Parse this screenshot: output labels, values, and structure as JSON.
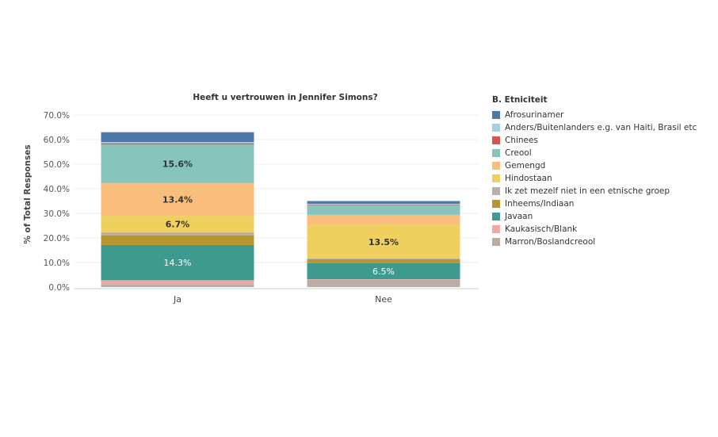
{
  "chart_data": {
    "type": "bar",
    "stacked": true,
    "title": "Heeft u vertrouwen in Jennifer Simons?",
    "ylabel": "% of Total Responses",
    "xlabel": "",
    "ylim": [
      0,
      70
    ],
    "y_ticks": [
      "0.0%",
      "10.0%",
      "20.0%",
      "30.0%",
      "40.0%",
      "50.0%",
      "60.0%",
      "70.0%"
    ],
    "grid": true,
    "categories": [
      "Ja",
      "Nee"
    ],
    "legend_title": "B. Etniciteit",
    "legend_position": "right",
    "series": [
      {
        "name": "Marron/Boslandcreool",
        "color": "#b8aea6",
        "values": [
          1.2,
          3.0
        ],
        "labels": [
          "",
          ""
        ]
      },
      {
        "name": "Kaukasisch/Blank",
        "color": "#f2a7a5",
        "values": [
          1.6,
          0.2
        ],
        "labels": [
          "",
          ""
        ]
      },
      {
        "name": "Javaan",
        "color": "#3e9a8e",
        "values": [
          14.3,
          6.5
        ],
        "labels": [
          "14.3%",
          "6.5%"
        ]
      },
      {
        "name": "Inheems/Indiaan",
        "color": "#b8952e",
        "values": [
          4.0,
          1.6
        ],
        "labels": [
          "",
          ""
        ]
      },
      {
        "name": "Ik zet mezelf niet in een etnische groep",
        "color": "#b7b0ad",
        "values": [
          1.2,
          0.4
        ],
        "labels": [
          "",
          ""
        ]
      },
      {
        "name": "Hindostaan",
        "color": "#efcf5d",
        "values": [
          6.7,
          13.5
        ],
        "labels": [
          "6.7%",
          "13.5%"
        ]
      },
      {
        "name": "Gemengd",
        "color": "#f9bd7c",
        "values": [
          13.4,
          4.2
        ],
        "labels": [
          "13.4%",
          ""
        ]
      },
      {
        "name": "Creool",
        "color": "#87c4bc",
        "values": [
          15.6,
          4.0
        ],
        "labels": [
          "15.6%",
          ""
        ]
      },
      {
        "name": "Chinees",
        "color": "#d9534f",
        "values": [
          0.5,
          0.2
        ],
        "labels": [
          "",
          ""
        ]
      },
      {
        "name": "Anders/Buitenlanders e.g. van Haiti, Brasil etc",
        "color": "#a6cee3",
        "values": [
          0.5,
          0.3
        ],
        "labels": [
          "",
          ""
        ]
      },
      {
        "name": "Afrosurinamer",
        "color": "#4e79a7",
        "values": [
          4.0,
          1.1
        ],
        "labels": [
          "",
          ""
        ]
      }
    ]
  },
  "legend_order": [
    "Afrosurinamer",
    "Anders/Buitenlanders e.g. van Haiti, Brasil etc",
    "Chinees",
    "Creool",
    "Gemengd",
    "Hindostaan",
    "Ik zet mezelf niet in een etnische groep",
    "Inheems/Indiaan",
    "Javaan",
    "Kaukasisch/Blank",
    "Marron/Boslandcreool"
  ]
}
